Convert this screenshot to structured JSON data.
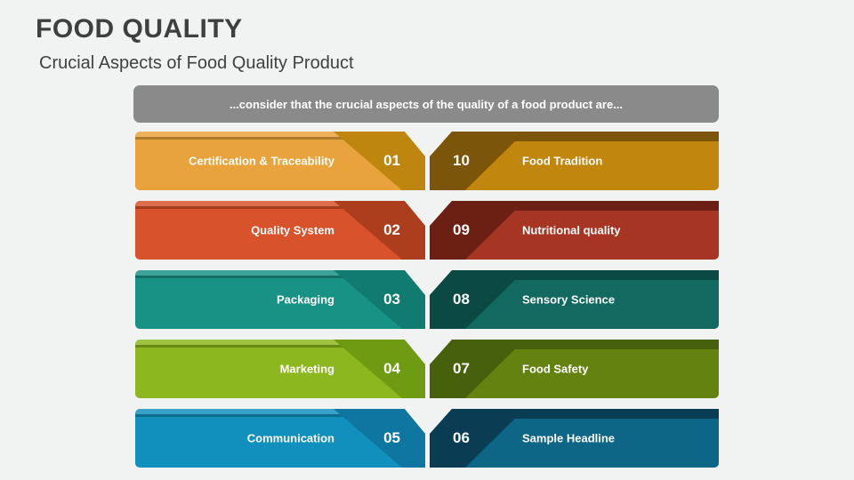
{
  "title": "FOOD QUALITY",
  "subtitle": "Crucial Aspects of Food Quality Product",
  "intro": "...consider that the crucial aspects of the quality of a food product are...",
  "intro_bg": "#8a8a8a",
  "left_items": [
    {
      "number": "01",
      "label": "Certification & Traceability",
      "body": "#e8a33c",
      "overlay": "#be860f"
    },
    {
      "number": "02",
      "label": "Quality System",
      "body": "#d8522b",
      "overlay": "#ac3e1e"
    },
    {
      "number": "03",
      "label": "Packaging",
      "body": "#189285",
      "overlay": "#127b6f"
    },
    {
      "number": "04",
      "label": "Marketing",
      "body": "#8db71e",
      "overlay": "#6f9b13"
    },
    {
      "number": "05",
      "label": "Communication",
      "body": "#1190be",
      "overlay": "#0f76a1"
    }
  ],
  "right_items": [
    {
      "number": "10",
      "label": "Food Tradition",
      "body": "#c0860d",
      "overlay": "#7b560a"
    },
    {
      "number": "09",
      "label": "Nutritional quality",
      "body": "#a63524",
      "overlay": "#6b2013"
    },
    {
      "number": "08",
      "label": "Sensory Science",
      "body": "#11695f",
      "overlay": "#0b4a42"
    },
    {
      "number": "07",
      "label": "Food Safety",
      "body": "#64820f",
      "overlay": "#46600b"
    },
    {
      "number": "06",
      "label": "Sample Headline",
      "body": "#0e6687",
      "overlay": "#0a3d53"
    }
  ]
}
